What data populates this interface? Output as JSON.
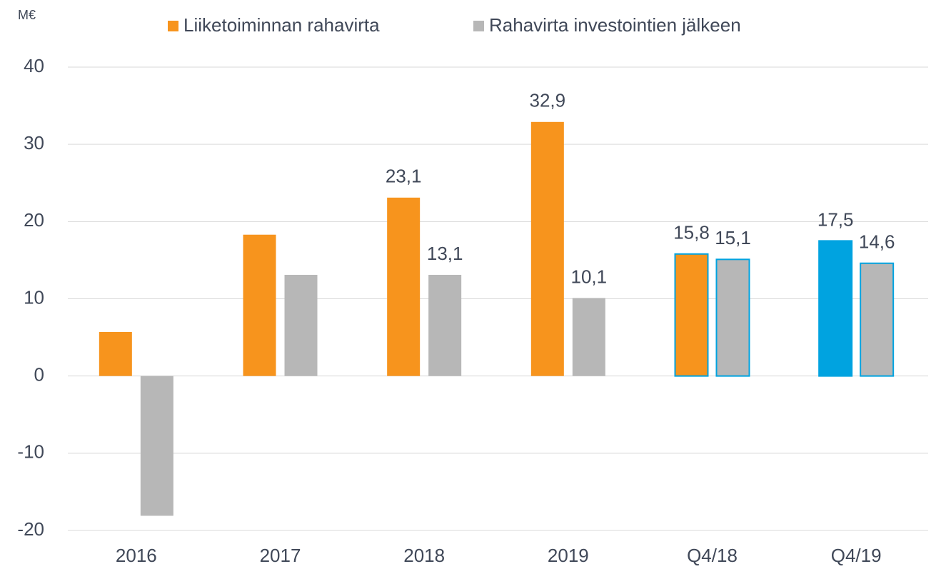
{
  "chart_data": {
    "type": "bar",
    "unit": "M€",
    "categories": [
      "2016",
      "2017",
      "2018",
      "2019",
      "Q4/18",
      "Q4/19"
    ],
    "series": [
      {
        "name": "Liiketoiminnan rahavirta",
        "color": "#f7941d",
        "colors": [
          "#f7941d",
          "#f7941d",
          "#f7941d",
          "#f7941d",
          "#f7941d",
          "#00a3e0"
        ],
        "values": [
          5.7,
          18.3,
          23.1,
          32.9,
          15.8,
          17.5
        ],
        "value_labels": [
          null,
          null,
          "23,1",
          "32,9",
          "15,8",
          "17,5"
        ]
      },
      {
        "name": "Rahavirta investointien jälkeen",
        "color": "#b7b7b7",
        "colors": [
          "#b7b7b7",
          "#b7b7b7",
          "#b7b7b7",
          "#b7b7b7",
          "#b7b7b7",
          "#b7b7b7"
        ],
        "values": [
          -18.1,
          13.1,
          13.1,
          10.1,
          15.1,
          14.6
        ],
        "value_labels": [
          null,
          null,
          "13,1",
          "10,1",
          "15,1",
          "14,6"
        ]
      }
    ],
    "outlined": [
      false,
      false,
      false,
      false,
      true,
      true
    ],
    "outline_color": "#00a3e0",
    "ylim": [
      -20,
      40
    ],
    "yticks": [
      -20,
      -10,
      0,
      10,
      20,
      30,
      40
    ],
    "grid": true,
    "legend": "top"
  }
}
